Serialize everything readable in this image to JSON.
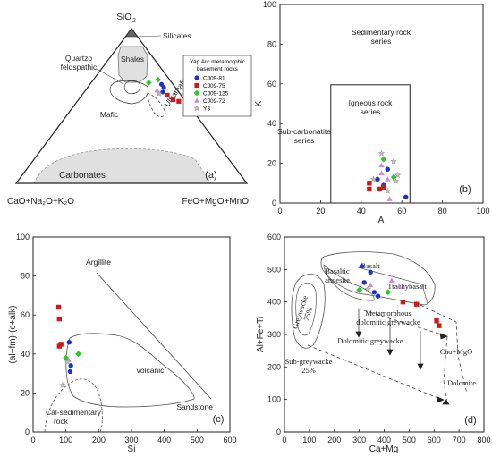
{
  "legend": {
    "title_lines": [
      "Yap Arc metamorphic",
      "basement rocks"
    ],
    "entries": [
      {
        "name": "CJ09-81",
        "shape": "circle",
        "color": "#1f2fd0"
      },
      {
        "name": "CJ09-75",
        "shape": "square",
        "color": "#cc1a1a"
      },
      {
        "name": "CJ09-125",
        "shape": "diamond",
        "color": "#22cc22"
      },
      {
        "name": "CJ09-72",
        "shape": "triangle",
        "color": "#c98ed6"
      },
      {
        "name": "Y3",
        "shape": "star",
        "color": "#bbbbbb"
      }
    ]
  },
  "chart_data": [
    {
      "type": "scatter",
      "subtype": "ternary",
      "panel": "(a)",
      "apex_labels": {
        "top": "SiO",
        "top_sub": "2",
        "left": "CaO+Na₂O+K₂O",
        "right": "FeO+MgO+MnO"
      },
      "field_labels": {
        "silicates": "Silicates",
        "shales": "Shales",
        "quartzo_1": "Quartzo",
        "quartzo_2": "feldspathic",
        "mafic": "Mafic",
        "ultramafic": "Ultramafic",
        "carbonates": "Carbonates"
      },
      "points": [
        {
          "series": "CJ09-81",
          "top": 0.64,
          "left": 0.05,
          "right": 0.31
        },
        {
          "series": "CJ09-81",
          "top": 0.62,
          "left": 0.05,
          "right": 0.33
        },
        {
          "series": "CJ09-81",
          "top": 0.59,
          "left": 0.07,
          "right": 0.34
        },
        {
          "series": "CJ09-75",
          "top": 0.57,
          "left": 0.06,
          "right": 0.37
        },
        {
          "series": "CJ09-75",
          "top": 0.54,
          "left": 0.05,
          "right": 0.41
        },
        {
          "series": "CJ09-75",
          "top": 0.53,
          "left": 0.03,
          "right": 0.44
        },
        {
          "series": "CJ09-125",
          "top": 0.67,
          "left": 0.05,
          "right": 0.28
        },
        {
          "series": "CJ09-125",
          "top": 0.65,
          "left": 0.1,
          "right": 0.25
        },
        {
          "series": "CJ09-72",
          "top": 0.6,
          "left": 0.09,
          "right": 0.31
        },
        {
          "series": "Y3",
          "top": 0.58,
          "left": 0.09,
          "right": 0.33
        }
      ]
    },
    {
      "type": "scatter",
      "panel": "(b)",
      "xlabel": "A",
      "ylabel": "K",
      "xlim": [
        0,
        100
      ],
      "ylim": [
        0,
        100
      ],
      "xticks": [
        0,
        20,
        40,
        60,
        80,
        100
      ],
      "yticks": [
        0,
        20,
        40,
        60,
        80,
        100
      ],
      "field_labels": {
        "sed_1": "Sedimentary rock",
        "sed_2": "series",
        "ign_1": "Igneous rock",
        "ign_2": "series",
        "sub_1": "Sub-carbonatite",
        "sub_2": "series"
      },
      "points": [
        {
          "series": "CJ09-81",
          "x": 53,
          "y": 17
        },
        {
          "series": "CJ09-81",
          "x": 48,
          "y": 12
        },
        {
          "series": "CJ09-81",
          "x": 51,
          "y": 9
        },
        {
          "series": "CJ09-81",
          "x": 62,
          "y": 3
        },
        {
          "series": "CJ09-75",
          "x": 44,
          "y": 10
        },
        {
          "series": "CJ09-75",
          "x": 44,
          "y": 7
        },
        {
          "series": "CJ09-75",
          "x": 49,
          "y": 7
        },
        {
          "series": "CJ09-75",
          "x": 51,
          "y": 8
        },
        {
          "series": "CJ09-125",
          "x": 51,
          "y": 22
        },
        {
          "series": "CJ09-125",
          "x": 56,
          "y": 13
        },
        {
          "series": "CJ09-72",
          "x": 50,
          "y": 19
        },
        {
          "series": "CJ09-72",
          "x": 50,
          "y": 15
        },
        {
          "series": "CJ09-72",
          "x": 53,
          "y": 12
        },
        {
          "series": "CJ09-72",
          "x": 54,
          "y": 2
        },
        {
          "series": "Y3",
          "x": 50,
          "y": 25
        },
        {
          "series": "Y3",
          "x": 56,
          "y": 21
        },
        {
          "series": "Y3",
          "x": 58,
          "y": 14
        },
        {
          "series": "Y3",
          "x": 46,
          "y": 12
        },
        {
          "series": "Y3",
          "x": 57,
          "y": 11
        },
        {
          "series": "Y3",
          "x": 53,
          "y": 6
        }
      ]
    },
    {
      "type": "scatter",
      "panel": "(c)",
      "xlabel": "Si",
      "ylabel": "(al+fm)-(c+alk)",
      "xlim": [
        0,
        600
      ],
      "ylim": [
        0,
        100
      ],
      "xticks": [
        0,
        100,
        200,
        300,
        400,
        500,
        600
      ],
      "yticks": [
        0,
        20,
        40,
        60,
        80,
        100
      ],
      "field_labels": {
        "argillite": "Argillite",
        "volcanic": "volcanic",
        "sandstone": "Sandstone",
        "cal_1": "Cal-sedimentary",
        "cal_2": "rock"
      },
      "points": [
        {
          "series": "CJ09-81",
          "x": 110,
          "y": 46
        },
        {
          "series": "CJ09-81",
          "x": 115,
          "y": 34
        },
        {
          "series": "CJ09-81",
          "x": 113,
          "y": 31
        },
        {
          "series": "CJ09-75",
          "x": 78,
          "y": 64
        },
        {
          "series": "CJ09-75",
          "x": 80,
          "y": 58
        },
        {
          "series": "CJ09-75",
          "x": 85,
          "y": 45
        },
        {
          "series": "CJ09-75",
          "x": 80,
          "y": 44
        },
        {
          "series": "CJ09-125",
          "x": 138,
          "y": 40
        },
        {
          "series": "CJ09-125",
          "x": 100,
          "y": 38
        },
        {
          "series": "CJ09-72",
          "x": 108,
          "y": 37
        },
        {
          "series": "Y3",
          "x": 105,
          "y": 36
        },
        {
          "series": "Y3",
          "x": 90,
          "y": 24
        }
      ]
    },
    {
      "type": "scatter",
      "panel": "(d)",
      "xlabel": "Ca+Mg",
      "ylabel": "Al+Fe+Ti",
      "xlim": [
        0,
        800
      ],
      "ylim": [
        0,
        600
      ],
      "xticks": [
        0,
        100,
        200,
        300,
        400,
        500,
        600,
        700,
        800
      ],
      "yticks": [
        0,
        100,
        200,
        300,
        400,
        500,
        600
      ],
      "field_labels": {
        "basaltic_1": "Basaltic",
        "basaltic_2": "andesite",
        "basalt": "Basalt",
        "trachybasalt": "Trachybasalt",
        "grey_1": "Greywacke",
        "grey_2": "75%",
        "meta_1": "Metamorphous",
        "meta_2": "dolomitic greywacke",
        "dolgrey": "Dolomitic greywacke",
        "camgo": "Cao+MgO",
        "subgrey_1": "Sub-greywacke",
        "subgrey_2": "25%",
        "dolomite": "Dolomite"
      },
      "points": [
        {
          "series": "CJ09-81",
          "x": 310,
          "y": 510
        },
        {
          "series": "CJ09-81",
          "x": 345,
          "y": 492
        },
        {
          "series": "CJ09-81",
          "x": 320,
          "y": 460
        },
        {
          "series": "CJ09-81",
          "x": 360,
          "y": 430
        },
        {
          "series": "CJ09-81",
          "x": 375,
          "y": 418
        },
        {
          "series": "CJ09-75",
          "x": 475,
          "y": 400
        },
        {
          "series": "CJ09-75",
          "x": 530,
          "y": 393
        },
        {
          "series": "CJ09-75",
          "x": 610,
          "y": 342
        },
        {
          "series": "CJ09-75",
          "x": 620,
          "y": 327
        },
        {
          "series": "CJ09-125",
          "x": 300,
          "y": 437
        },
        {
          "series": "CJ09-125",
          "x": 415,
          "y": 430
        },
        {
          "series": "CJ09-72",
          "x": 345,
          "y": 452
        },
        {
          "series": "CJ09-72",
          "x": 430,
          "y": 466
        },
        {
          "series": "CJ09-72",
          "x": 460,
          "y": 448
        },
        {
          "series": "Y3",
          "x": 335,
          "y": 440
        }
      ]
    }
  ]
}
